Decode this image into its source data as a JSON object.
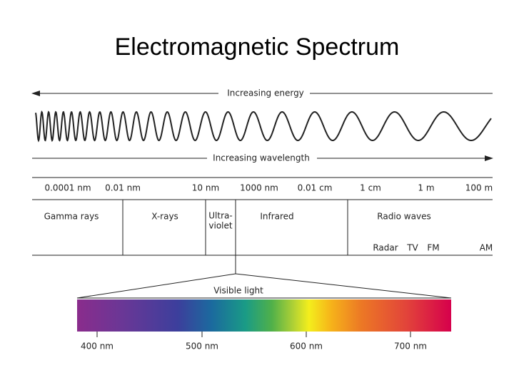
{
  "title": "Electromagnetic Spectrum",
  "energy_arrow": "Increasing energy",
  "wavelength_arrow": "Increasing wavelength",
  "scale_labels": [
    "0.0001 nm",
    "0.01 nm",
    "10 nm",
    "1000 nm",
    "0.01 cm",
    "1 cm",
    "1 m",
    "100 m"
  ],
  "regions": {
    "gamma": "Gamma rays",
    "xray": "X-rays",
    "ultraviolet": [
      "Ultra-",
      "violet"
    ],
    "infrared": "Infrared",
    "radio": "Radio waves"
  },
  "radio_bands": [
    "Radar",
    "TV",
    "FM",
    "AM"
  ],
  "visible_label": "Visible light",
  "visible_ticks": [
    "400 nm",
    "500 nm",
    "600 nm",
    "700 nm"
  ]
}
